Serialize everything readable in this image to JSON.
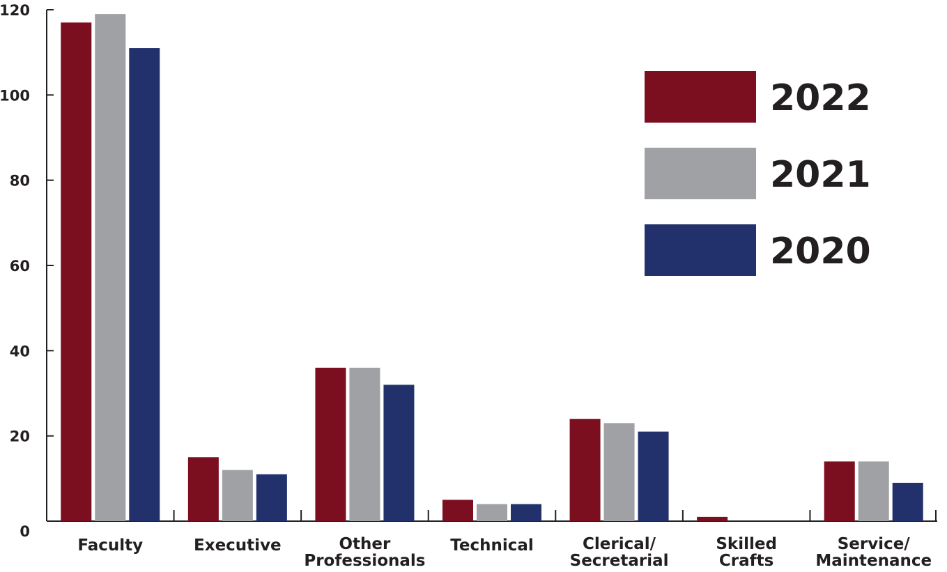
{
  "chart_data": {
    "type": "bar",
    "categories": [
      [
        "Faculty"
      ],
      [
        "Executive"
      ],
      [
        "Other",
        "Professionals"
      ],
      [
        "Technical"
      ],
      [
        "Clerical/",
        "Secretarial"
      ],
      [
        "Skilled",
        "Crafts"
      ],
      [
        "Service/",
        "Maintenance"
      ]
    ],
    "series": [
      {
        "name": "2022",
        "color": "#7b0f20",
        "values": [
          117,
          15,
          36,
          5,
          24,
          1,
          14
        ]
      },
      {
        "name": "2021",
        "color": "#a0a1a5",
        "values": [
          119,
          12,
          36,
          4,
          23,
          0,
          14
        ]
      },
      {
        "name": "2020",
        "color": "#22316b",
        "values": [
          111,
          11,
          32,
          4,
          21,
          0,
          9
        ]
      }
    ],
    "ylim": [
      0,
      120
    ],
    "yticks": [
      "0",
      "20",
      "40",
      "60",
      "80",
      "100",
      "120"
    ],
    "title": "",
    "xlabel": "",
    "ylabel": "",
    "grid": false,
    "legend_position": "top-right"
  }
}
